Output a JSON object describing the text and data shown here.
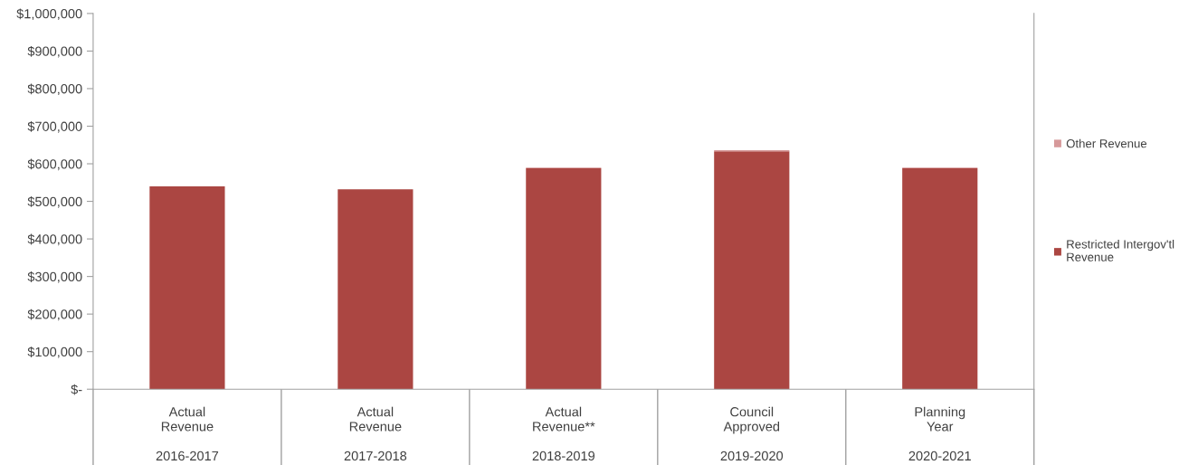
{
  "chart_data": {
    "type": "bar",
    "stacked": true,
    "categories": [
      "Actual\nRevenue\n2016-2017",
      "Actual\nRevenue\n2017-2018",
      "Actual\nRevenue**\n2018-2019",
      "Council\nApproved\n2019-2020",
      "Planning\nYear\n2020-2021"
    ],
    "series": [
      {
        "name": "Restricted Intergov'tl\nRevenue",
        "color": "#ab4642",
        "values": [
          540000,
          532000,
          588000,
          633000,
          588000
        ]
      },
      {
        "name": "Other Revenue",
        "color": "#d6999a",
        "values": [
          0,
          0,
          2000,
          3000,
          2000
        ]
      }
    ],
    "ylim": [
      0,
      1000000
    ],
    "yticks": [
      {
        "value": 0,
        "label": "$-"
      },
      {
        "value": 100000,
        "label": "$100,000"
      },
      {
        "value": 200000,
        "label": "$200,000"
      },
      {
        "value": 300000,
        "label": "$300,000"
      },
      {
        "value": 400000,
        "label": "$400,000"
      },
      {
        "value": 500000,
        "label": "$500,000"
      },
      {
        "value": 600000,
        "label": "$600,000"
      },
      {
        "value": 700000,
        "label": "$700,000"
      },
      {
        "value": 800000,
        "label": "$800,000"
      },
      {
        "value": 900000,
        "label": "$900,000"
      },
      {
        "value": 1000000,
        "label": "$1,000,000"
      }
    ],
    "grid": false,
    "legend": "right"
  }
}
